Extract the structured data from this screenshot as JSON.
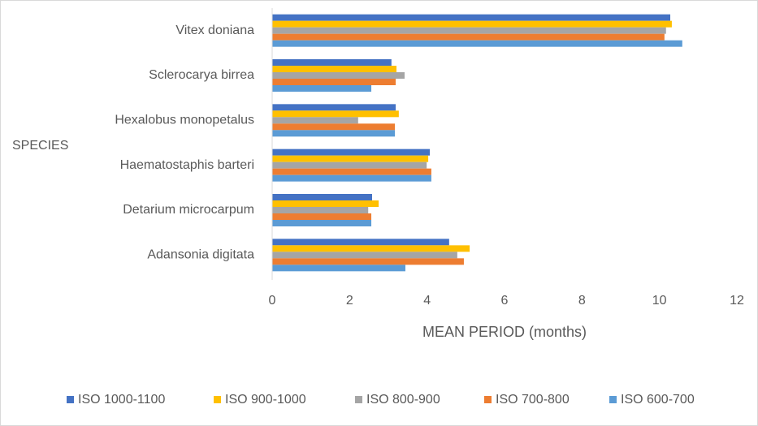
{
  "chart_data": {
    "type": "bar",
    "orientation": "horizontal",
    "y_label": "SPECIES",
    "x_label": "MEAN PERIOD (months)",
    "categories": [
      "Vitex doniana",
      "Sclerocarya birrea",
      "Hexalobus monopetalus",
      "Haematostaphis barteri",
      "Detarium microcarpum",
      "Adansonia digitata"
    ],
    "series": [
      {
        "name": "ISO 1000-1100",
        "color": "#4472c4",
        "values": [
          10.28,
          3.08,
          3.19,
          4.07,
          2.58,
          4.57
        ]
      },
      {
        "name": "ISO 900-1000",
        "color": "#ffc000",
        "values": [
          10.32,
          3.21,
          3.27,
          4.03,
          2.75,
          5.1
        ]
      },
      {
        "name": "ISO 800-900",
        "color": "#a5a5a5",
        "values": [
          10.17,
          3.42,
          2.22,
          3.99,
          2.48,
          4.78
        ]
      },
      {
        "name": "ISO 700-800",
        "color": "#ed7d31",
        "values": [
          10.13,
          3.19,
          3.17,
          4.11,
          2.56,
          4.95
        ]
      },
      {
        "name": "ISO 600-700",
        "color": "#5b9bd5",
        "values": [
          10.59,
          2.56,
          3.17,
          4.11,
          2.56,
          3.44
        ]
      }
    ],
    "xlim": [
      0,
      12
    ],
    "xticks": [
      0,
      2,
      4,
      6,
      8,
      10,
      12
    ],
    "grid": false,
    "legend": "bottom"
  }
}
